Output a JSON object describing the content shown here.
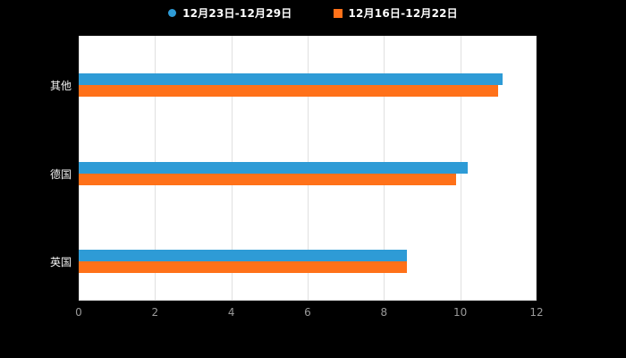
{
  "chart_data": {
    "type": "bar",
    "orientation": "horizontal",
    "title": "",
    "xlabel": "",
    "ylabel": "",
    "categories": [
      "其他",
      "德国",
      "英国"
    ],
    "series": [
      {
        "name": "12月23日-12月29日",
        "color": "#2E9BD6",
        "marker": "circle",
        "values": [
          11.1,
          10.2,
          8.6
        ]
      },
      {
        "name": "12月16日-12月22日",
        "color": "#FF7119",
        "marker": "square",
        "values": [
          11.0,
          9.9,
          8.6
        ]
      }
    ],
    "xlim": [
      0,
      12
    ],
    "xticks": [
      0,
      2,
      4,
      6,
      8,
      10,
      12
    ],
    "grid": true,
    "legend_position": "top",
    "plot_background": "#ffffff",
    "page_background": "#000000",
    "gridline_color": "#e0e0e0",
    "tick_label_color": "#999999",
    "category_label_color": "#f2f2f2"
  }
}
